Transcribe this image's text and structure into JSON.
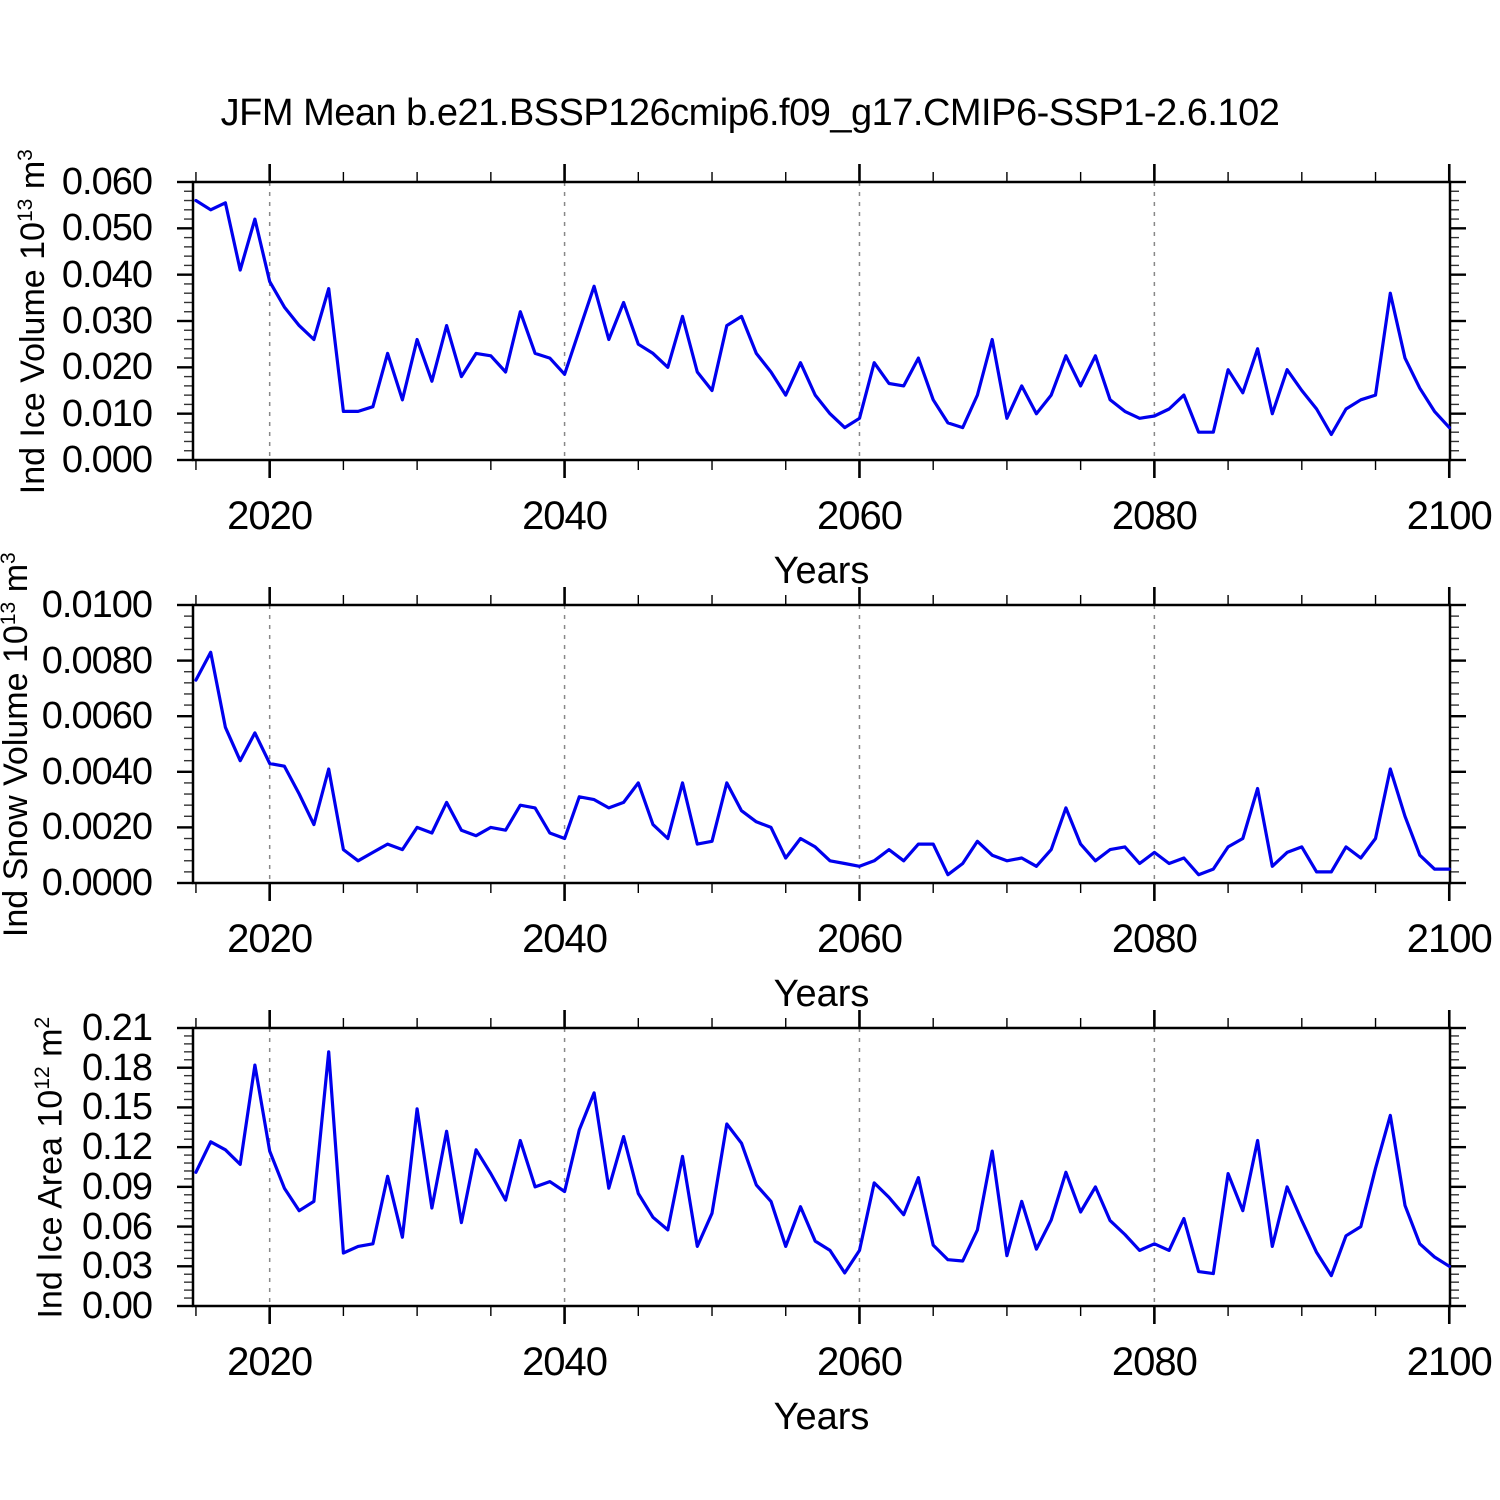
{
  "title": "JFM Mean b.e21.BSSP126cmip6.f09_g17.CMIP6-SSP1-2.6.102",
  "colors": {
    "line": "#0000ee",
    "grid": "#888888",
    "axis": "#000000",
    "text": "#000000"
  },
  "x_axis": {
    "label": "Years",
    "start_year": 2015,
    "end_year": 2100,
    "xlim": [
      2014.8,
      2100.05
    ],
    "major_ticks": [
      2020,
      2040,
      2060,
      2080,
      2100
    ],
    "major_tick_labels": [
      "2020",
      "2040",
      "2060",
      "2080",
      "2100"
    ],
    "minor_tick_step": 5,
    "gridlines_at": [
      2020,
      2040,
      2060,
      2080
    ],
    "grid_style": "dashed"
  },
  "chart_data": [
    {
      "type": "line",
      "name": "ice-volume",
      "ylabel_parts": {
        "base": "Ind Ice Volume 10",
        "exp": "13",
        "unit": " m",
        "unit_exp": "3"
      },
      "ylim": [
        0.0,
        0.06
      ],
      "y_tick_values": [
        0.0,
        0.01,
        0.02,
        0.03,
        0.04,
        0.05,
        0.06
      ],
      "y_tick_labels": [
        "0.000",
        "0.010",
        "0.020",
        "0.030",
        "0.040",
        "0.050",
        "0.060"
      ],
      "y_minor_step": 0.002,
      "years_range": [
        2015,
        2100
      ],
      "values": [
        0.056,
        0.054,
        0.0555,
        0.041,
        0.052,
        0.0385,
        0.033,
        0.029,
        0.026,
        0.037,
        0.0105,
        0.0105,
        0.0115,
        0.023,
        0.013,
        0.026,
        0.017,
        0.029,
        0.018,
        0.023,
        0.0225,
        0.019,
        0.032,
        0.023,
        0.022,
        0.0185,
        0.028,
        0.0375,
        0.026,
        0.034,
        0.025,
        0.023,
        0.02,
        0.031,
        0.019,
        0.015,
        0.029,
        0.031,
        0.023,
        0.019,
        0.014,
        0.021,
        0.014,
        0.01,
        0.007,
        0.009,
        0.021,
        0.0165,
        0.016,
        0.022,
        0.013,
        0.008,
        0.007,
        0.014,
        0.026,
        0.009,
        0.016,
        0.01,
        0.014,
        0.0225,
        0.016,
        0.0225,
        0.013,
        0.0105,
        0.009,
        0.0095,
        0.011,
        0.014,
        0.006,
        0.006,
        0.0195,
        0.0145,
        0.024,
        0.01,
        0.0195,
        0.015,
        0.011,
        0.0055,
        0.011,
        0.013,
        0.014,
        0.036,
        0.022,
        0.0155,
        0.0105,
        0.007
      ]
    },
    {
      "type": "line",
      "name": "snow-volume",
      "ylabel_parts": {
        "base": "Ind Snow Volume 10",
        "exp": "13",
        "unit": " m",
        "unit_exp": "3"
      },
      "ylim": [
        0.0,
        0.01
      ],
      "y_tick_values": [
        0.0,
        0.002,
        0.004,
        0.006,
        0.008,
        0.01
      ],
      "y_tick_labels": [
        "0.0000",
        "0.0020",
        "0.0040",
        "0.0060",
        "0.0080",
        "0.0100"
      ],
      "y_minor_step": 0.0004,
      "years_range": [
        2015,
        2100
      ],
      "values": [
        0.0073,
        0.0083,
        0.0056,
        0.0044,
        0.0054,
        0.0043,
        0.0042,
        0.0032,
        0.0021,
        0.0041,
        0.0012,
        0.0008,
        0.0011,
        0.0014,
        0.0012,
        0.002,
        0.0018,
        0.0029,
        0.0019,
        0.0017,
        0.002,
        0.0019,
        0.0028,
        0.0027,
        0.0018,
        0.0016,
        0.0031,
        0.003,
        0.0027,
        0.0029,
        0.0036,
        0.0021,
        0.0016,
        0.0036,
        0.0014,
        0.0015,
        0.0036,
        0.0026,
        0.0022,
        0.002,
        0.0009,
        0.0016,
        0.0013,
        0.0008,
        0.0007,
        0.0006,
        0.0008,
        0.0012,
        0.0008,
        0.0014,
        0.0014,
        0.0003,
        0.0007,
        0.0015,
        0.001,
        0.0008,
        0.0009,
        0.0006,
        0.0012,
        0.0027,
        0.0014,
        0.0008,
        0.0012,
        0.0013,
        0.0007,
        0.0011,
        0.0007,
        0.0009,
        0.0003,
        0.0005,
        0.0013,
        0.0016,
        0.0034,
        0.0006,
        0.0011,
        0.0013,
        0.0004,
        0.0004,
        0.0013,
        0.0009,
        0.0016,
        0.0041,
        0.0024,
        0.001,
        0.0005,
        0.0005
      ]
    },
    {
      "type": "line",
      "name": "ice-area",
      "ylabel_parts": {
        "base": "Ind Ice Area 10",
        "exp": "12",
        "unit": " m",
        "unit_exp": "2"
      },
      "ylim": [
        0.0,
        0.21
      ],
      "y_tick_values": [
        0.0,
        0.03,
        0.06,
        0.09,
        0.12,
        0.15,
        0.18,
        0.21
      ],
      "y_tick_labels": [
        "0.00",
        "0.03",
        "0.06",
        "0.09",
        "0.12",
        "0.15",
        "0.18",
        "0.21"
      ],
      "y_minor_step": 0.006,
      "years_range": [
        2015,
        2100
      ],
      "values": [
        0.101,
        0.124,
        0.118,
        0.107,
        0.182,
        0.117,
        0.089,
        0.072,
        0.079,
        0.192,
        0.04,
        0.045,
        0.047,
        0.098,
        0.052,
        0.149,
        0.074,
        0.132,
        0.063,
        0.118,
        0.1,
        0.08,
        0.125,
        0.09,
        0.094,
        0.0865,
        0.133,
        0.161,
        0.089,
        0.128,
        0.085,
        0.067,
        0.0575,
        0.113,
        0.045,
        0.07,
        0.1375,
        0.123,
        0.0915,
        0.079,
        0.045,
        0.075,
        0.049,
        0.042,
        0.025,
        0.042,
        0.093,
        0.082,
        0.069,
        0.097,
        0.046,
        0.035,
        0.034,
        0.0575,
        0.117,
        0.038,
        0.079,
        0.043,
        0.065,
        0.101,
        0.071,
        0.09,
        0.0645,
        0.054,
        0.042,
        0.047,
        0.042,
        0.066,
        0.026,
        0.0245,
        0.1,
        0.072,
        0.125,
        0.045,
        0.09,
        0.0645,
        0.0405,
        0.023,
        0.053,
        0.06,
        0.104,
        0.144,
        0.076,
        0.047,
        0.037,
        0.03
      ]
    }
  ]
}
